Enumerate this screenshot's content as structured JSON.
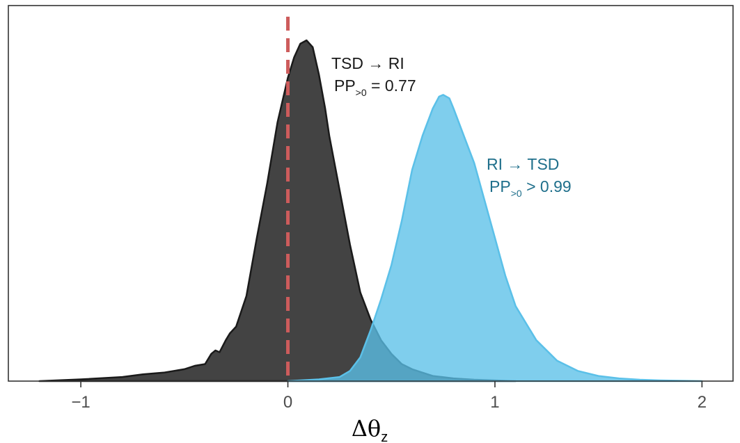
{
  "chart_data": {
    "type": "area",
    "title": "",
    "xlabel": "Δθ",
    "xlabel_subscript": "z",
    "ylabel": "",
    "xlim": [
      -1.35,
      2.15
    ],
    "ylim": [
      0,
      1.0
    ],
    "x_ticks": [
      -1,
      0,
      1,
      2
    ],
    "x_tick_labels": [
      "−1",
      "0",
      "1",
      "2"
    ],
    "grid": false,
    "legend": "none",
    "reference_line": {
      "x": 0,
      "style": "dashed",
      "color": "#cd5c5c"
    },
    "series": [
      {
        "fill_color": "#333333",
        "fill_opacity": 0.92,
        "stroke_color": "#1a1a1a",
        "x": [
          -1.2,
          -1.0,
          -0.8,
          -0.7,
          -0.6,
          -0.5,
          -0.45,
          -0.4,
          -0.37,
          -0.35,
          -0.33,
          -0.3,
          -0.28,
          -0.25,
          -0.2,
          -0.15,
          -0.1,
          -0.05,
          0.0,
          0.03,
          0.06,
          0.09,
          0.12,
          0.15,
          0.18,
          0.2,
          0.25,
          0.3,
          0.35,
          0.4,
          0.45,
          0.5,
          0.55,
          0.6,
          0.65,
          0.7,
          0.8,
          0.9,
          1.0,
          1.1
        ],
        "y": [
          0.0,
          0.005,
          0.012,
          0.02,
          0.025,
          0.035,
          0.045,
          0.05,
          0.08,
          0.09,
          0.085,
          0.12,
          0.14,
          0.16,
          0.25,
          0.42,
          0.58,
          0.76,
          0.89,
          0.95,
          0.99,
          1.0,
          0.98,
          0.9,
          0.8,
          0.72,
          0.56,
          0.4,
          0.26,
          0.18,
          0.12,
          0.08,
          0.05,
          0.035,
          0.025,
          0.015,
          0.008,
          0.004,
          0.002,
          0.0
        ]
      },
      {
        "fill_color": "#5bc0e8",
        "fill_opacity": 0.78,
        "stroke_color": "#5bc0e8",
        "x": [
          0.0,
          0.15,
          0.25,
          0.3,
          0.35,
          0.4,
          0.45,
          0.5,
          0.55,
          0.6,
          0.65,
          0.7,
          0.73,
          0.75,
          0.78,
          0.8,
          0.85,
          0.9,
          0.95,
          1.0,
          1.05,
          1.1,
          1.2,
          1.3,
          1.4,
          1.5,
          1.6,
          1.7,
          1.8,
          1.9,
          2.0
        ],
        "y": [
          0.0,
          0.005,
          0.012,
          0.03,
          0.07,
          0.15,
          0.24,
          0.34,
          0.47,
          0.62,
          0.72,
          0.8,
          0.835,
          0.84,
          0.83,
          0.8,
          0.72,
          0.64,
          0.53,
          0.42,
          0.31,
          0.22,
          0.12,
          0.06,
          0.03,
          0.015,
          0.008,
          0.004,
          0.002,
          0.001,
          0.0
        ]
      }
    ],
    "annotations": [
      {
        "line1": "TSD → RI",
        "pp_base": "PP",
        "pp_sub": ">0",
        "pp_value": " = 0.77",
        "color": "#1a1a1a"
      },
      {
        "line1": "RI → TSD",
        "pp_base": "PP",
        "pp_sub": ">0",
        "pp_value": " > 0.99",
        "color": "#1f6f8b"
      }
    ]
  }
}
